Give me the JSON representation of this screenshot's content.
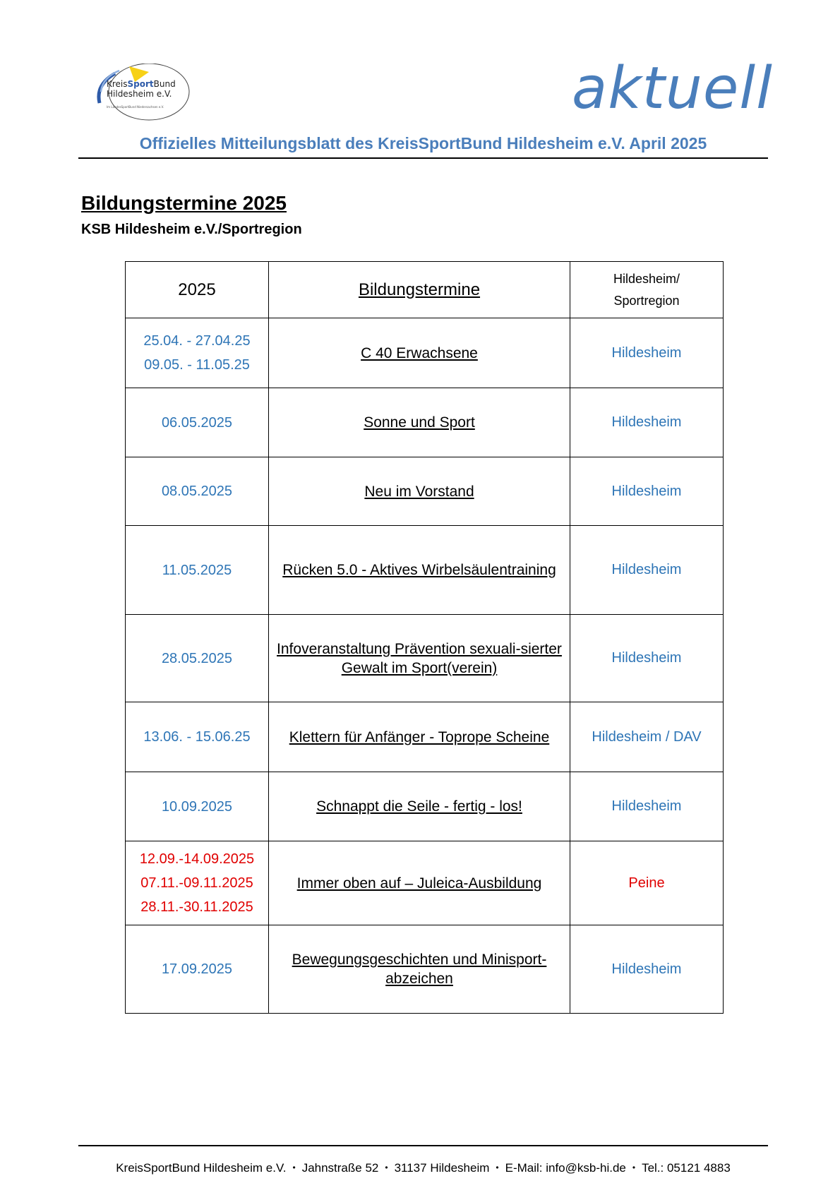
{
  "header": {
    "logo_text_line1": "KreisSportBund",
    "logo_text_line2": "Hildesheim e.V.",
    "logo_small_text": "Im LandesSportBund Niedersachsen e.V.",
    "brand": "aktuell",
    "subtitle": "Offizielles Mitteilungsblatt des KreisSportBund Hildesheim e.V. April 2025"
  },
  "main": {
    "title": "Bildungstermine 2025",
    "subtitle": "KSB Hildesheim e.V./Sportregion",
    "table": {
      "headers": [
        "2025",
        "Bildungstermine",
        "Hildesheim/",
        "Sportregion"
      ],
      "rows": [
        {
          "dates": [
            "25.04. - 27.04.25",
            "09.05. - 11.05.25"
          ],
          "event": "C 40 Erwachsene",
          "location": "Hildesheim",
          "highlight": false
        },
        {
          "dates": [
            "06.05.2025"
          ],
          "event": "Sonne und Sport",
          "location": "Hildesheim",
          "highlight": false
        },
        {
          "dates": [
            "08.05.2025"
          ],
          "event": "Neu im Vorstand",
          "location": "Hildesheim",
          "highlight": false
        },
        {
          "dates": [
            "11.05.2025"
          ],
          "event": "Rücken 5.0 - Aktives Wirbelsäulentraining",
          "location": "Hildesheim",
          "highlight": false
        },
        {
          "dates": [
            "28.05.2025"
          ],
          "event": "Infoveranstaltung Prävention sexuali-sierter Gewalt im Sport(verein)",
          "location": "Hildesheim",
          "highlight": false
        },
        {
          "dates": [
            "13.06. - 15.06.25"
          ],
          "event": "Klettern für Anfänger - Toprope Scheine",
          "location": "Hildesheim / DAV",
          "highlight": false
        },
        {
          "dates": [
            "10.09.2025"
          ],
          "event": "Schnappt die Seile - fertig - los!",
          "location": "Hildesheim",
          "highlight": false
        },
        {
          "dates": [
            "12.09.-14.09.2025",
            "07.11.-09.11.2025",
            "28.11.-30.11.2025"
          ],
          "event": "Immer oben auf – Juleica-Ausbildung",
          "location": "Peine",
          "highlight": true
        },
        {
          "dates": [
            "17.09.2025"
          ],
          "event": "Bewegungsgeschichten und Minisport-abzeichen",
          "location": "Hildesheim",
          "highlight": false
        }
      ]
    }
  },
  "footer": {
    "items": [
      "KreisSportBund Hildesheim e.V.",
      "Jahnstraße 52",
      "31137 Hildesheim",
      "E-Mail: info@ksb-hi.de",
      "Tel.: 05121 4883"
    ]
  },
  "colors": {
    "brand_blue": "#4a7ebb",
    "date_blue": "#2e75b6",
    "highlight_red": "#e00000"
  }
}
